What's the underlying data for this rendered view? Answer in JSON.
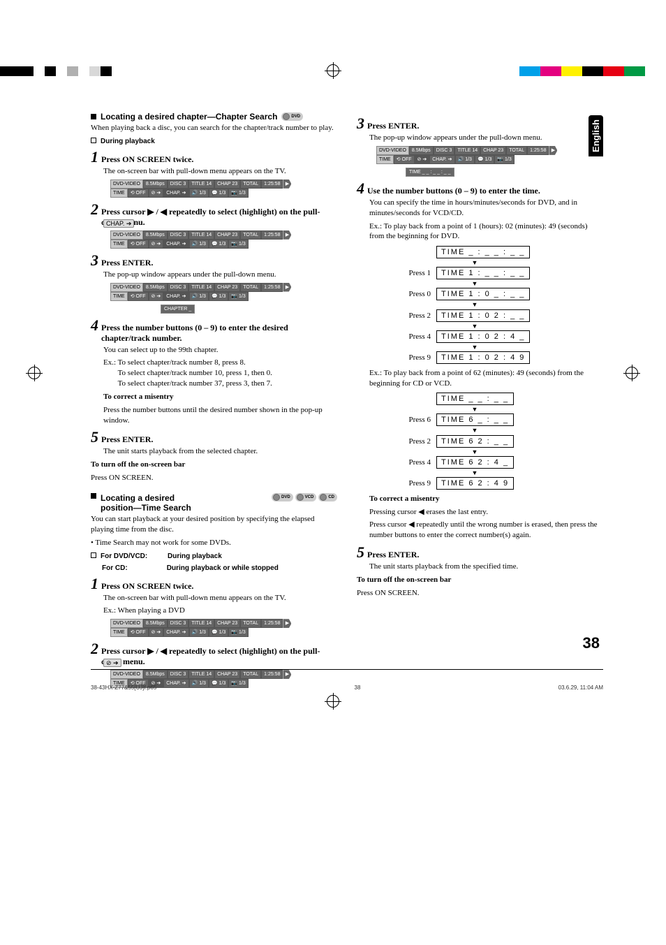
{
  "page": {
    "language_tab": "English",
    "page_number": "38",
    "footer_left": "38-43HX-Z77&55[UJ]f.p65",
    "footer_center": "38",
    "footer_right": "03.6.29, 11:04 AM"
  },
  "color_bars": {
    "left": [
      "#000000",
      "#000000",
      "#000000",
      "#ffffff",
      "#000000",
      "#ffffff",
      "#b0b0b0",
      "#ffffff",
      "#d8d8d8",
      "#000000"
    ],
    "right": [
      "#00a0e9",
      "#e4007f",
      "#fff100",
      "#000000",
      "#e60012",
      "#009944",
      "#ffffff"
    ]
  },
  "left": {
    "heading1": "Locating a desired chapter—Chapter Search",
    "badge1": "DVD",
    "intro1": "When playing back a disc, you can search for the chapter/track number to play.",
    "during_playback": "During playback",
    "step1": "Press ON SCREEN twice.",
    "step1_sub": "The on-screen bar with pull-down menu appears on the TV.",
    "osd_main": {
      "r1": [
        "DVD-VIDEO",
        "8.5Mbps",
        "DISC 3",
        "TITLE 14",
        "CHAP 23",
        "TOTAL",
        "1:25:58",
        "▶"
      ],
      "r2": [
        "TIME",
        "⟲ OFF",
        "⊘ ➔",
        "CHAP. ➔",
        "🔊 1/3",
        "💬 1/3",
        "📷 1/3"
      ]
    },
    "step2": "Press cursor ▶ / ◀ repeatedly to select (highlight)            on the pull-down menu.",
    "step2_icon": "CHAP. ➔",
    "step3": "Press ENTER.",
    "step3_sub": "The pop-up window appears under the pull-down menu.",
    "popup_chapter": "CHAPTER   _",
    "step4": "Press the number buttons (0 – 9) to enter the desired chapter/track number.",
    "step4_sub": "You can select up to the 99th chapter.",
    "step4_ex_label": "Ex.:",
    "step4_ex1": "To select chapter/track number 8, press 8.",
    "step4_ex2": "To select chapter/track number 10, press 1, then 0.",
    "step4_ex3": "To select chapter/track number 37, press 3, then 7.",
    "correct_h": "To correct a misentry",
    "correct_t": "Press the number buttons until the desired number shown in the pop-up window.",
    "step5": "Press ENTER.",
    "step5_sub": "The unit starts playback from the selected chapter.",
    "turnoff_h": "To turn off the on-screen bar",
    "turnoff_t": "Press ON SCREEN.",
    "heading2a": "Locating a desired",
    "heading2b": "position—Time Search",
    "badges2": [
      "DVD",
      "VCD",
      "CD"
    ],
    "intro2": "You can start playback at your desired position by specifying the elapsed playing time from the disc.",
    "bullet2": "Time Search may not work for some DVDs.",
    "fordvd_l": "For DVD/VCD:",
    "fordvd_r": "During playback",
    "forcd_l": "For CD:",
    "forcd_r": "During playback or while stopped",
    "t_step1": "Press ON SCREEN twice.",
    "t_step1_sub": "The on-screen bar with pull-down menu appears on the TV.",
    "t_step1_ex": "Ex.: When playing a DVD",
    "t_step2": "Press cursor ▶ / ◀ repeatedly to select (highlight)          on the pull-down menu.",
    "t_step2_icon": "⊘ ➔"
  },
  "right": {
    "step3": "Press ENTER.",
    "step3_sub": "The pop-up window appears under the pull-down menu.",
    "popup_time": "TIME  _ _ : _ _ : _ _",
    "step4": "Use the number buttons (0 – 9) to enter the time.",
    "step4_sub1": "You can specify the time in hours/minutes/seconds for DVD, and in minutes/seconds for VCD/CD.",
    "step4_ex_label": "Ex.:",
    "step4_ex1": "To play back from a point of 1 (hours): 02 (minutes): 49 (seconds) from the beginning for DVD.",
    "time_dvd": [
      {
        "press": "",
        "val": "TIME   _ : _ _ : _ _"
      },
      {
        "press": "Press 1",
        "val": "TIME   1 : _ _ : _ _"
      },
      {
        "press": "Press 0",
        "val": "TIME   1 : 0 _ : _ _"
      },
      {
        "press": "Press 2",
        "val": "TIME   1 : 0 2 : _ _"
      },
      {
        "press": "Press 4",
        "val": "TIME   1 : 0 2 : 4 _"
      },
      {
        "press": "Press 9",
        "val": "TIME   1 : 0 2 : 4 9"
      }
    ],
    "step4_ex2": "To play back from a point of 62 (minutes): 49 (seconds) from the beginning for CD or VCD.",
    "time_cd": [
      {
        "press": "",
        "val": "TIME     _ _ : _ _"
      },
      {
        "press": "Press 6",
        "val": "TIME     6 _ : _ _"
      },
      {
        "press": "Press 2",
        "val": "TIME     6 2 : _ _"
      },
      {
        "press": "Press 4",
        "val": "TIME     6 2 : 4 _"
      },
      {
        "press": "Press 9",
        "val": "TIME     6 2 : 4 9"
      }
    ],
    "correct_h": "To correct a misentry",
    "correct_t1": "Pressing cursor ◀ erases the last entry.",
    "correct_t2": "Press cursor ◀ repeatedly until the wrong number is erased, then press the number buttons to enter the correct number(s) again.",
    "step5": "Press ENTER.",
    "step5_sub": "The unit starts playback from the specified time.",
    "turnoff_h": "To turn off the on-screen bar",
    "turnoff_t": "Press ON SCREEN."
  }
}
